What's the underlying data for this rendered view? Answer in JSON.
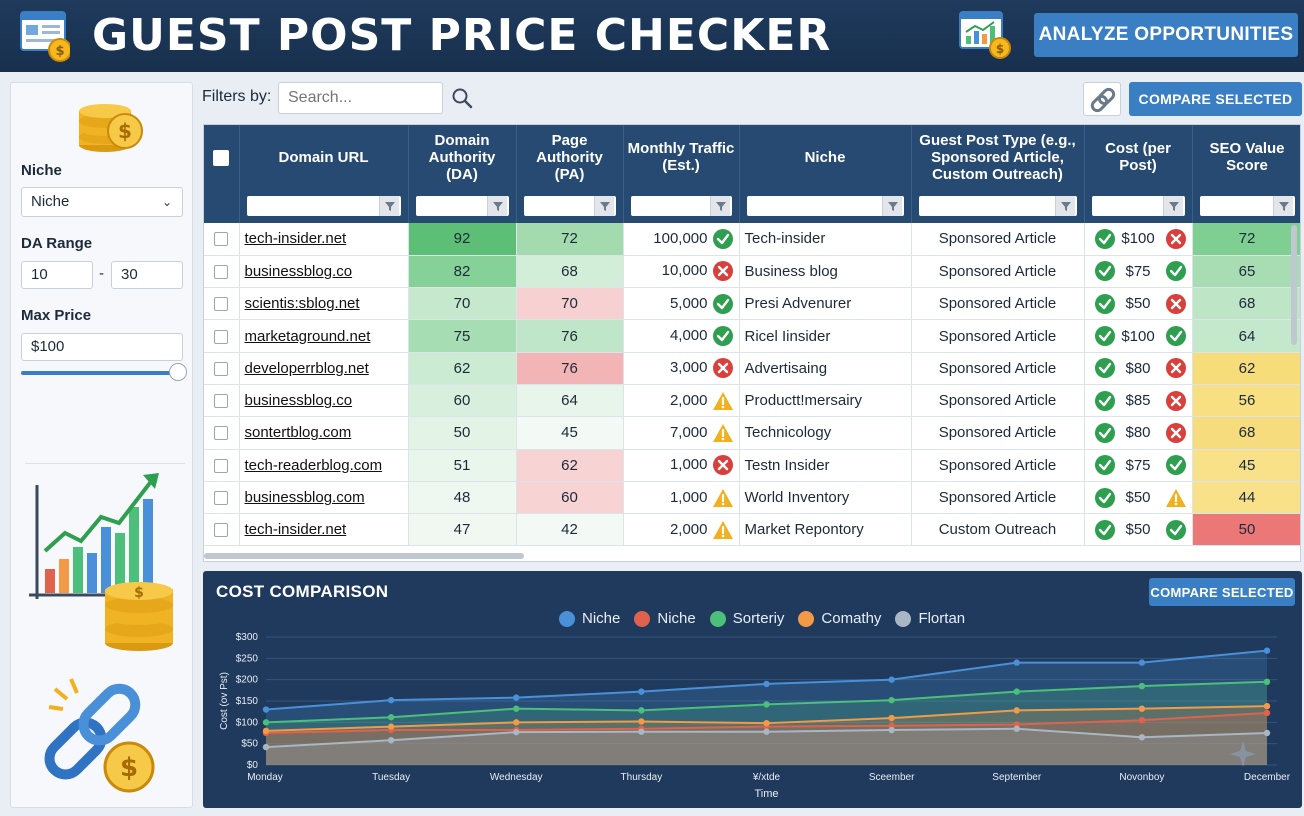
{
  "header": {
    "title": "GUEST POST PRICE CHECKER",
    "analyze_label": "ANALYZE OPPORTUNITIES"
  },
  "sidebar": {
    "niche_label": "Niche",
    "niche_value": "Niche",
    "da_range_label": "DA Range",
    "da_min": "10",
    "da_sep": "-",
    "da_max": "30",
    "max_price_label": "Max Price",
    "max_price_value": "$100",
    "slider_level": 1.0
  },
  "toolbar": {
    "filters_label": "Filters by:",
    "search_placeholder": "Search...",
    "compare_label": "COMPARE SELECTED"
  },
  "table": {
    "columns": [
      "Domain URL",
      "Domain Authority (DA)",
      "Page Authority (PA)",
      "Monthly Traffic (Est.)",
      "Niche",
      "Guest Post Type (e.g., Sponsored Article, Custom Outreach)",
      "Cost (per Post)",
      "SEO Value Score"
    ],
    "rows": [
      {
        "url": "tech-insider.net",
        "da": "92",
        "pa": "72",
        "traffic": "100,000",
        "traffic_status": "ok",
        "niche": "Tech-insider",
        "type": "Sponsored Article",
        "cost": "$100",
        "cost_status": "ok",
        "cost_flag": "bad",
        "seo": "72"
      },
      {
        "url": "businessblog.co",
        "da": "82",
        "pa": "68",
        "traffic": "10,000",
        "traffic_status": "bad",
        "niche": "Business blog",
        "type": "Sponsored Article",
        "cost": "$75",
        "cost_status": "ok",
        "cost_flag": "ok",
        "seo": "65"
      },
      {
        "url": "scientis:sblog.net",
        "da": "70",
        "pa": "70",
        "traffic": "5,000",
        "traffic_status": "ok",
        "niche": "Presi Advenurer",
        "type": "Sponsored Article",
        "cost": "$50",
        "cost_status": "ok",
        "cost_flag": "bad",
        "seo": "68"
      },
      {
        "url": "marketaground.net",
        "da": "75",
        "pa": "76",
        "traffic": "4,000",
        "traffic_status": "ok",
        "niche": "Ricel Iinsider",
        "type": "Sponsored Article",
        "cost": "$100",
        "cost_status": "ok",
        "cost_flag": "ok",
        "seo": "64"
      },
      {
        "url": "developerrblog.net",
        "da": "62",
        "pa": "76",
        "traffic": "3,000",
        "traffic_status": "bad",
        "niche": "Advertisaing",
        "type": "Sponsored Article",
        "cost": "$80",
        "cost_status": "ok",
        "cost_flag": "bad",
        "seo": "62"
      },
      {
        "url": "businessblog.co",
        "da": "60",
        "pa": "64",
        "traffic": "2,000",
        "traffic_status": "warn",
        "niche": "Productt!mersairy",
        "type": "Sponsored Article",
        "cost": "$85",
        "cost_status": "ok",
        "cost_flag": "bad",
        "seo": "56"
      },
      {
        "url": "sontertblog.com",
        "da": "50",
        "pa": "45",
        "traffic": "7,000",
        "traffic_status": "warn",
        "niche": "Technicology",
        "type": "Sponsored Article",
        "cost": "$80",
        "cost_status": "ok",
        "cost_flag": "bad",
        "seo": "68"
      },
      {
        "url": "tech-readerblog.com",
        "da": "51",
        "pa": "62",
        "traffic": "1,000",
        "traffic_status": "bad",
        "niche": "Testn Insider",
        "type": "Sponsored Article",
        "cost": "$75",
        "cost_status": "ok",
        "cost_flag": "ok",
        "seo": "45"
      },
      {
        "url": "businessblog.com",
        "da": "48",
        "pa": "60",
        "traffic": "1,000",
        "traffic_status": "warn",
        "niche": "World Inventory",
        "type": "Sponsored Article",
        "cost": "$50",
        "cost_status": "ok",
        "cost_flag": "warn",
        "seo": "44"
      },
      {
        "url": "tech-insider.net",
        "da": "47",
        "pa": "42",
        "traffic": "2,000",
        "traffic_status": "warn",
        "niche": "Market Repontory",
        "type": "Custom Outreach",
        "cost": "$50",
        "cost_status": "ok",
        "cost_flag": "ok",
        "seo": "50"
      }
    ],
    "da_colors": [
      "#5cbf75",
      "#86d197",
      "#c6e8cd",
      "#a6ddb2",
      "#cbebd2",
      "#d7efdc",
      "#e3f3e6",
      "#e9f6ec",
      "#eef8f0",
      "#f1f8f2"
    ],
    "pa_colors": [
      "#a3dbaf",
      "#d2eed8",
      "#f7d1d1",
      "#bfe6c8",
      "#f2b4b4",
      "#e7f5ea",
      "#f3f9f4",
      "#f7d3d3",
      "#f7d3d3",
      "#f3f9f4"
    ],
    "seo_colors": [
      "#7fcf93",
      "#a8ddb4",
      "#bde5c6",
      "#c4e8cc",
      "#f7dd7a",
      "#f7df82",
      "#f6dc7c",
      "#f8e188",
      "#f8e188",
      "#ec7777"
    ],
    "status_colors": {
      "ok": "#2e9e4f",
      "bad": "#d9403c",
      "warn": "#f2b01e"
    }
  },
  "chart": {
    "title": "COST COMPARISON",
    "compare_label": "COMPARE SELECTED",
    "watermark_icon": "sparkle-icon"
  },
  "chart_data": {
    "type": "area",
    "x": [
      "Monday",
      "Tuesday",
      "Wednesday",
      "Thursday",
      "¥/xtde",
      "Sceember",
      "September",
      "Novonboy",
      "December"
    ],
    "xlabel": "Time",
    "ylabel": "Cost (ov Pst)",
    "ylim": [
      0,
      300
    ],
    "y_ticks": [
      "$0",
      "$50",
      "$100",
      "$150",
      "$200",
      "$250",
      "$300"
    ],
    "series": [
      {
        "name": "Niche",
        "color": "#4a90d9",
        "values": [
          130,
          152,
          158,
          172,
          190,
          200,
          240,
          240,
          268
        ]
      },
      {
        "name": "Niche",
        "color": "#e0624d",
        "values": [
          75,
          82,
          82,
          85,
          90,
          92,
          95,
          105,
          122
        ]
      },
      {
        "name": "Sorteriy",
        "color": "#4cbf7a",
        "values": [
          100,
          112,
          132,
          128,
          142,
          152,
          172,
          185,
          195
        ]
      },
      {
        "name": "Comathy",
        "color": "#f29a45",
        "values": [
          80,
          90,
          100,
          102,
          98,
          110,
          128,
          132,
          138
        ]
      },
      {
        "name": "Flortan",
        "color": "#a9b6c3",
        "values": [
          42,
          58,
          77,
          78,
          78,
          82,
          85,
          65,
          75
        ]
      }
    ],
    "legend_position": "top"
  }
}
